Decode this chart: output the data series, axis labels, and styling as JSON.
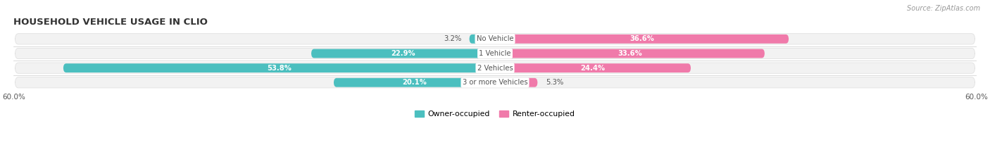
{
  "title": "HOUSEHOLD VEHICLE USAGE IN CLIO",
  "source": "Source: ZipAtlas.com",
  "categories": [
    "No Vehicle",
    "1 Vehicle",
    "2 Vehicles",
    "3 or more Vehicles"
  ],
  "owner_values": [
    3.2,
    22.9,
    53.8,
    20.1
  ],
  "renter_values": [
    36.6,
    33.6,
    24.4,
    5.3
  ],
  "owner_color": "#4bbfbf",
  "renter_color": "#f07aaa",
  "owner_label": "Owner-occupied",
  "renter_label": "Renter-occupied",
  "axis_max": 60.0,
  "axis_label": "60.0%",
  "bg_color": "#ffffff",
  "row_bg_color": "#f2f2f2",
  "title_color": "#333333",
  "label_color": "#555555",
  "center_label_color": "#555555",
  "value_inside_color": "#ffffff",
  "value_outside_color": "#555555",
  "figsize": [
    14.06,
    2.33
  ],
  "dpi": 100
}
